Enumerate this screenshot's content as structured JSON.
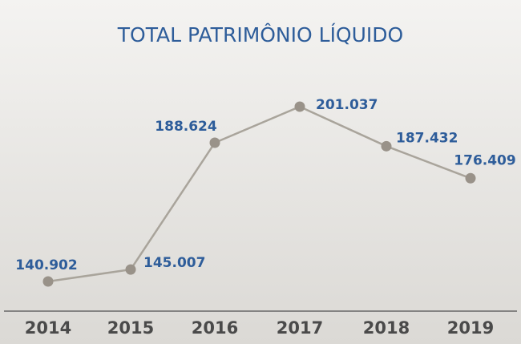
{
  "chart_data": {
    "type": "line",
    "title": "TOTAL PATRIMÔNIO LÍQUIDO",
    "categories": [
      "2014",
      "2015",
      "2016",
      "2017",
      "2018",
      "2019"
    ],
    "values": [
      140902,
      145007,
      188624,
      201037,
      187432,
      176409
    ],
    "value_labels": [
      "140.902",
      "145.007",
      "188.624",
      "201.037",
      "187.432",
      "176.409"
    ],
    "color": "#a9a49b",
    "marker_color": "#999289",
    "label_color": "#2e5d9a"
  }
}
